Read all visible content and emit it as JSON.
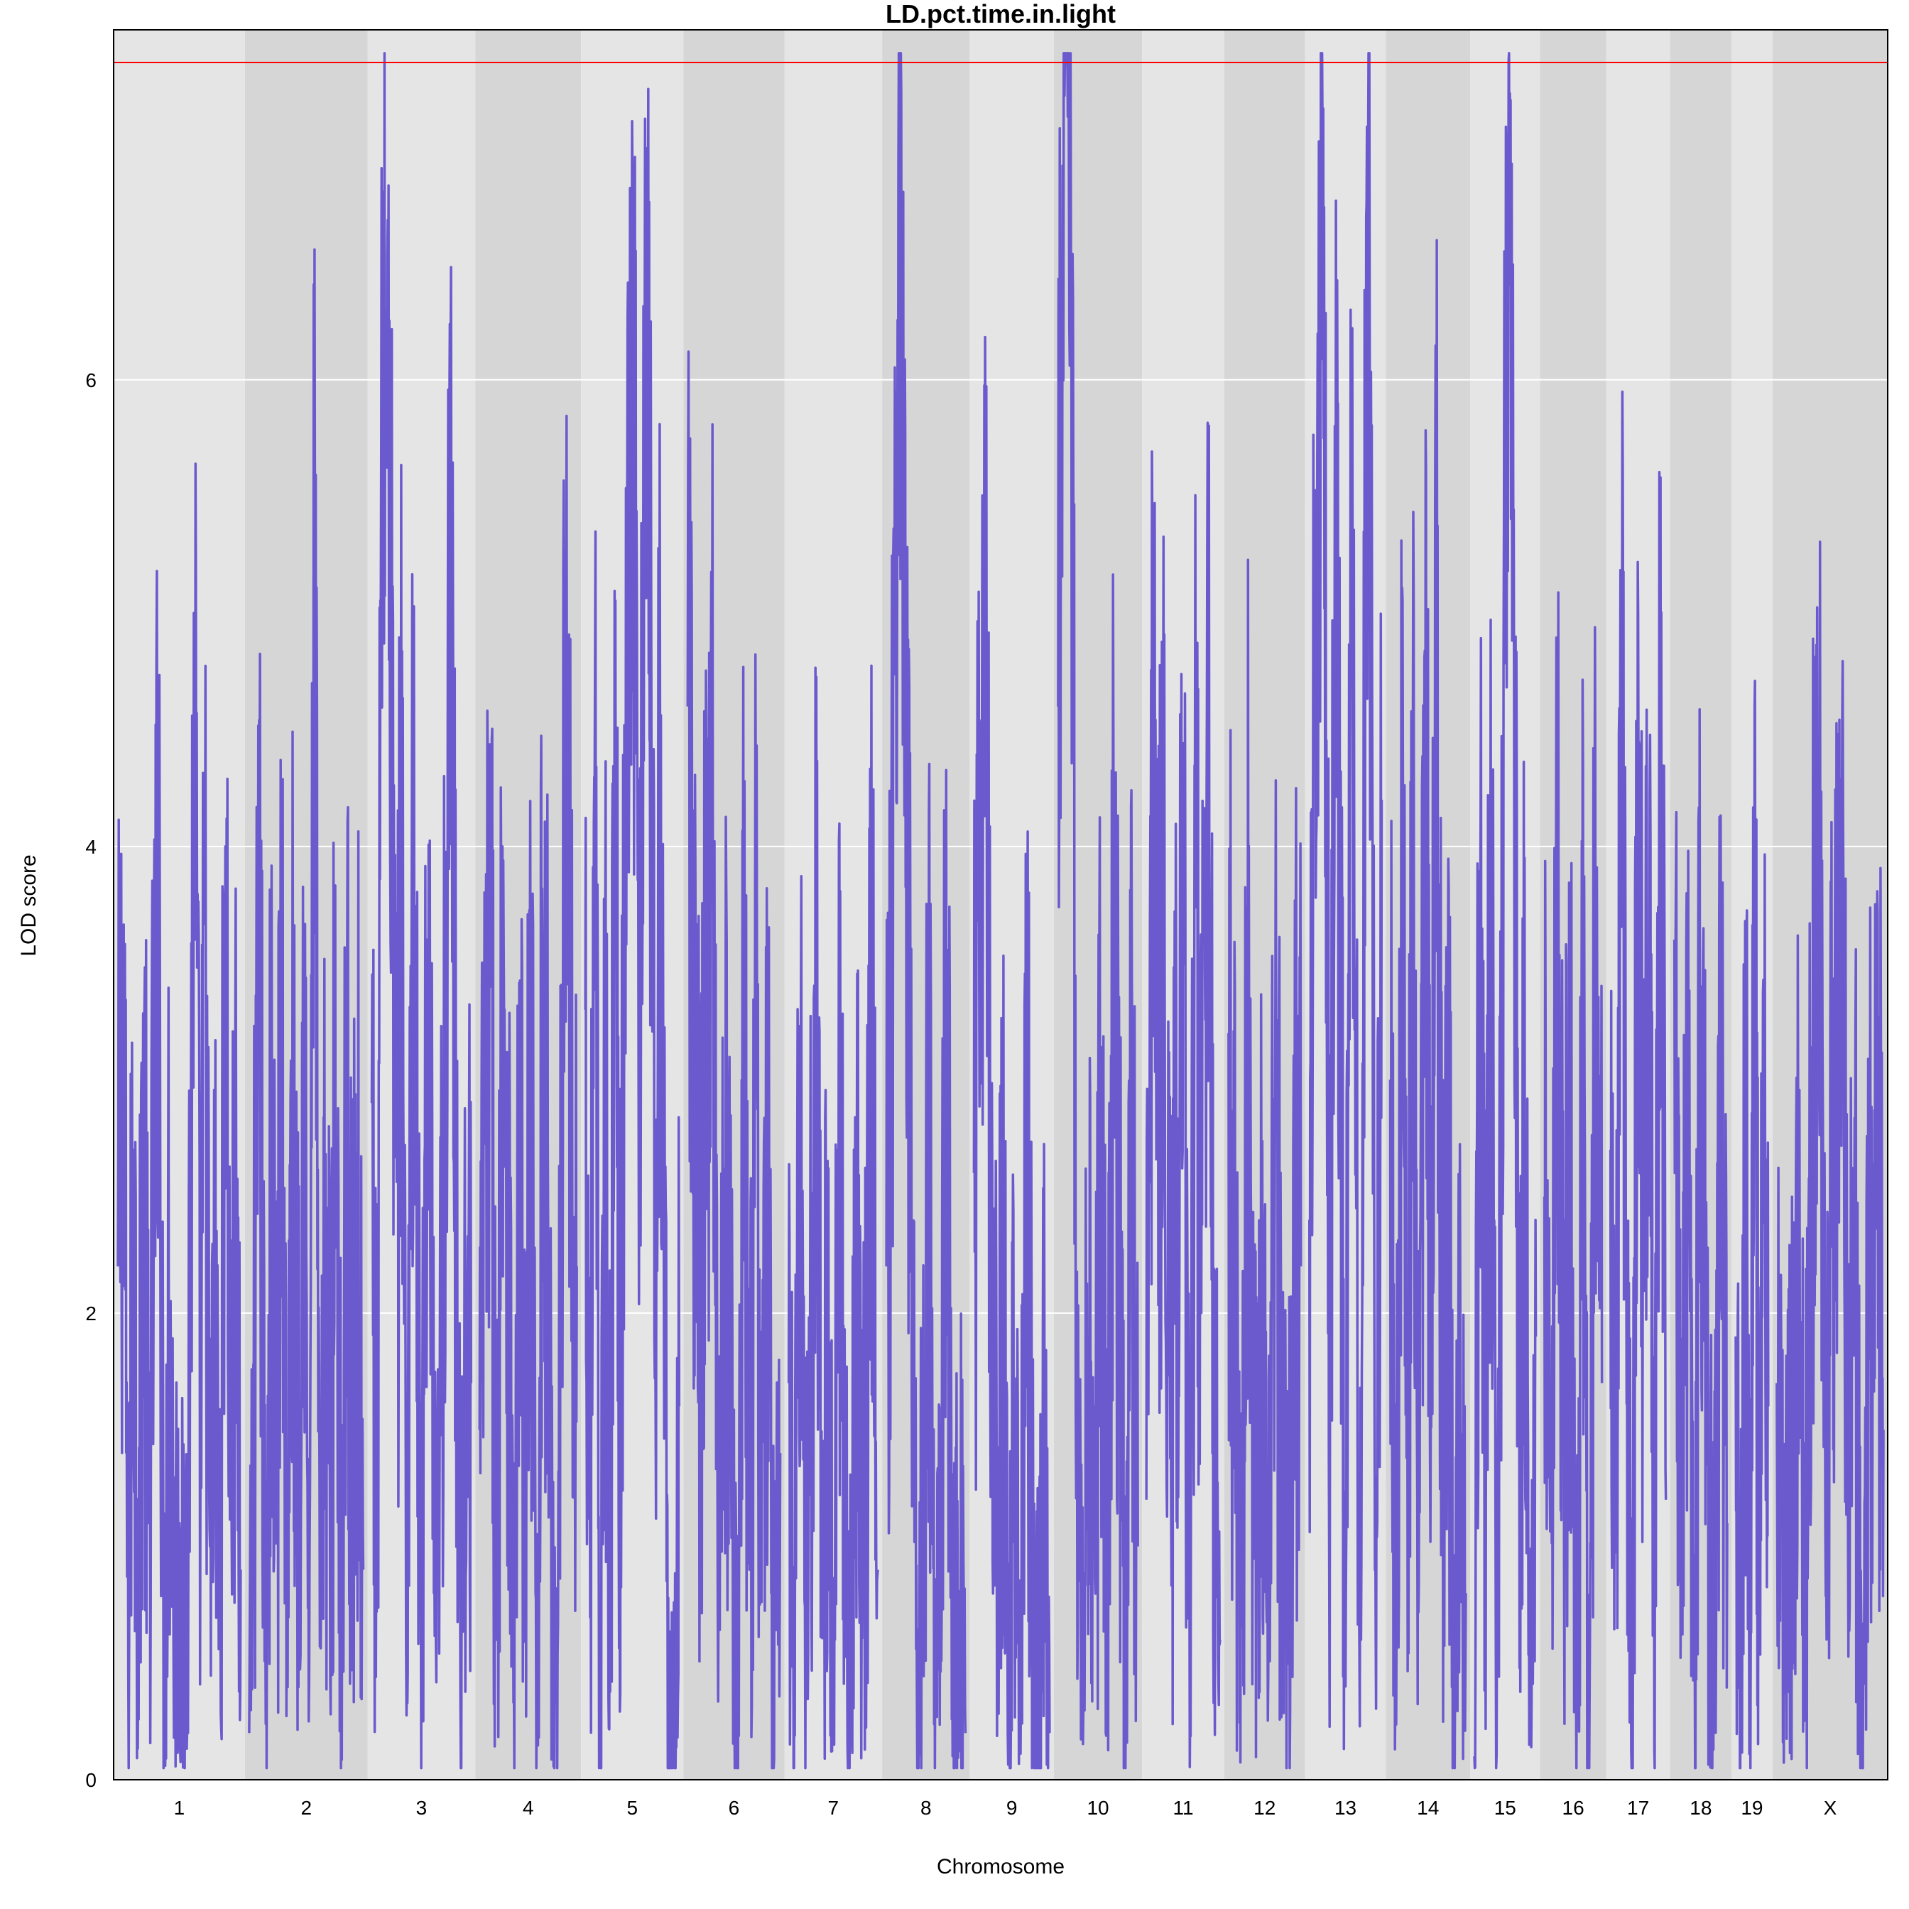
{
  "chart_data": {
    "type": "line",
    "title": "LD.pct.time.in.light",
    "xlabel": "Chromosome",
    "ylabel": "LOD score",
    "ylim": [
      0,
      7.5
    ],
    "yticks": [
      0,
      2,
      4,
      6
    ],
    "grid": "horizontal",
    "threshold": {
      "value": 7.36,
      "color": "#ff0000"
    },
    "colors": {
      "line": "#6a5acd",
      "band_light": "#e5e5e5",
      "band_dark": "#d6d6d6",
      "grid": "#ffffff"
    },
    "chromosomes": [
      {
        "name": "1",
        "length": 195
      },
      {
        "name": "2",
        "length": 182
      },
      {
        "name": "3",
        "length": 160
      },
      {
        "name": "4",
        "length": 157
      },
      {
        "name": "5",
        "length": 152
      },
      {
        "name": "6",
        "length": 150
      },
      {
        "name": "7",
        "length": 145
      },
      {
        "name": "8",
        "length": 130
      },
      {
        "name": "9",
        "length": 125
      },
      {
        "name": "10",
        "length": 131
      },
      {
        "name": "11",
        "length": 122
      },
      {
        "name": "12",
        "length": 120
      },
      {
        "name": "13",
        "length": 120
      },
      {
        "name": "14",
        "length": 125
      },
      {
        "name": "15",
        "length": 104
      },
      {
        "name": "16",
        "length": 98
      },
      {
        "name": "17",
        "length": 95
      },
      {
        "name": "18",
        "length": 91
      },
      {
        "name": "19",
        "length": 61
      },
      {
        "name": "X",
        "length": 171
      }
    ],
    "series": [
      {
        "values": {
          "1": [
            2.2,
            3.3,
            0.6,
            2.7,
            0.9,
            2.9,
            1.1,
            2.6,
            4.2,
            0.3,
            2.4,
            0.8,
            1.1,
            0.5,
            2.0,
            4.8,
            1.4,
            3.5,
            1.0,
            1.9,
            0.7,
            4.0,
            1.3,
            2.2,
            0.9
          ],
          "2": [
            0.2,
            1.9,
            3.3,
            0.5,
            2.6,
            1.3,
            3.3,
            0.9,
            2.8,
            1.5,
            3.4,
            0.4,
            5.4,
            0.3,
            2.3,
            1.2,
            3.3,
            0.7,
            2.9,
            1.5,
            2.4,
            0.9
          ],
          "3": [
            2.9,
            0.9,
            5.7,
            6.2,
            4.7,
            1.9,
            4.5,
            0.4,
            3.9,
            2.6,
            0.6,
            3.3,
            2.1,
            0.4,
            1.9,
            3.6,
            5.1,
            2.5,
            0.8,
            2.1,
            1.7
          ],
          "4": [
            1.5,
            2.8,
            3.4,
            0.6,
            4.0,
            2.5,
            0.4,
            2.6,
            1.2,
            3.1,
            0.3,
            3.5,
            2.3,
            0.3,
            1.6,
            4.8,
            3.3,
            2.2
          ],
          "5": [
            3.3,
            1.3,
            3.9,
            0.2,
            2.8,
            1.0,
            4.3,
            1.8,
            3.8,
            6.0,
            5.6,
            2.9,
            5.9,
            5.3,
            2.3,
            4.2,
            1.8,
            0.4,
            0.2,
            1.6
          ],
          "6": [
            4.6,
            3.2,
            1.7,
            3.3,
            4.2,
            0.8,
            2.7,
            1.6,
            0.2,
            3.2,
            0.9,
            3.1,
            1.2,
            2.5,
            0.5,
            1.4
          ],
          "7": [
            1.7,
            0.5,
            2.8,
            0.9,
            1.8,
            3.3,
            0.6,
            2.3,
            0.3,
            2.9,
            1.4,
            0.5,
            2.6,
            0.9,
            1.7,
            3.5,
            0.9
          ],
          "8": [
            2.2,
            3.6,
            6.6,
            5.6,
            2.3,
            0.6,
            1.2,
            2.8,
            0.3,
            1.6,
            3.2,
            0.4,
            1.3,
            0.2
          ],
          "9": [
            2.6,
            3.6,
            4.7,
            2.5,
            1.1,
            2.2,
            0.3,
            1.8,
            0.6,
            3.0,
            1.3,
            0.5,
            1.5,
            0.2
          ],
          "10": [
            4.6,
            7.2,
            6.7,
            1.8,
            0.4,
            2.4,
            1.1,
            2.8,
            0.7,
            3.7,
            2.2,
            0.5,
            2.9,
            1.0
          ],
          "11": [
            1.2,
            4.3,
            2.9,
            3.8,
            1.3,
            2.6,
            3.9,
            0.6,
            3.9,
            2.1,
            4.7,
            1.5,
            0.6
          ],
          "12": [
            3.2,
            1.9,
            0.6,
            3.6,
            1.3,
            2.4,
            0.5,
            3.0,
            1.6,
            0.7,
            2.6,
            2.2
          ],
          "13": [
            2.4,
            4.9,
            6.2,
            5.1,
            1.5,
            5.8,
            3.6,
            0.4,
            6.3,
            2.8,
            0.6,
            6.7,
            5.5,
            1.3,
            4.2
          ],
          "14": [
            3.0,
            0.6,
            3.9,
            1.1,
            4.1,
            0.7,
            4.5,
            2.4,
            4.9,
            1.5,
            2.8,
            0.6,
            1.7,
            0.8
          ],
          "15": [
            0.1,
            4.2,
            1.2,
            4.0,
            0.3,
            3.5,
            7.0,
            5.2,
            1.6,
            2.9,
            0.5,
            1.9
          ],
          "16": [
            2.5,
            0.8,
            3.8,
            1.4,
            2.9,
            0.3,
            3.1,
            0.1,
            3.9,
            1.7
          ],
          "17": [
            2.7,
            1.0,
            5.0,
            1.6,
            0.4,
            5.0,
            1.7,
            3.9,
            0.6,
            5.1,
            1.2
          ],
          "18": [
            3.6,
            1.1,
            2.4,
            0.4,
            3.4,
            1.3,
            0.6,
            2.7,
            1.1
          ],
          "19": [
            1.9,
            0.3,
            2.9,
            0.8,
            3.6,
            1.0,
            2.9,
            1.6
          ],
          "X": [
            1.7,
            0.8,
            1.4,
            2.2,
            0.8,
            3.2,
            3.9,
            1.1,
            2.9,
            4.5,
            1.3,
            2.2,
            0.3,
            2.0,
            3.2,
            1.5
          ]
        }
      }
    ]
  }
}
